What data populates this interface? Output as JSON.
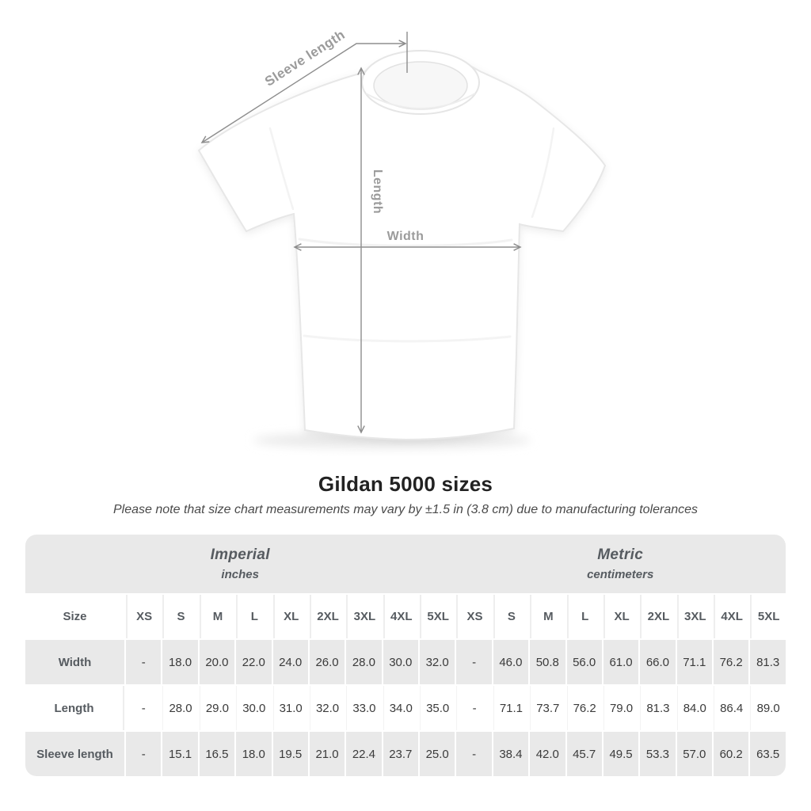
{
  "diagram": {
    "sleeve_label": "Sleeve length",
    "length_label": "Length",
    "width_label": "Width"
  },
  "title": "Gildan 5000 sizes",
  "subtitle": "Please note that size chart measurements may vary by ±1.5 in (3.8 cm) due to manufacturing tolerances",
  "table": {
    "size_header": "Size",
    "groups": [
      {
        "label": "Imperial",
        "sublabel": "inches"
      },
      {
        "label": "Metric",
        "sublabel": "centimeters"
      }
    ],
    "sizes": [
      "XS",
      "S",
      "M",
      "L",
      "XL",
      "2XL",
      "3XL",
      "4XL",
      "5XL"
    ],
    "rows": [
      {
        "label": "Width",
        "imperial": [
          "-",
          "18.0",
          "20.0",
          "22.0",
          "24.0",
          "26.0",
          "28.0",
          "30.0",
          "32.0"
        ],
        "metric": [
          "-",
          "46.0",
          "50.8",
          "56.0",
          "61.0",
          "66.0",
          "71.1",
          "76.2",
          "81.3"
        ]
      },
      {
        "label": "Length",
        "imperial": [
          "-",
          "28.0",
          "29.0",
          "30.0",
          "31.0",
          "32.0",
          "33.0",
          "34.0",
          "35.0"
        ],
        "metric": [
          "-",
          "71.1",
          "73.7",
          "76.2",
          "79.0",
          "81.3",
          "84.0",
          "86.4",
          "89.0"
        ]
      },
      {
        "label": "Sleeve length",
        "imperial": [
          "-",
          "15.1",
          "16.5",
          "18.0",
          "19.5",
          "21.0",
          "22.4",
          "23.7",
          "25.0"
        ],
        "metric": [
          "-",
          "38.4",
          "42.0",
          "45.7",
          "49.5",
          "53.3",
          "57.0",
          "60.2",
          "63.5"
        ]
      }
    ]
  },
  "colors": {
    "band": "#e9e9e9",
    "line": "#8d8d8d",
    "label": "#9b9b9b",
    "title": "#222222",
    "header-text": "#565b60",
    "value-text": "#3b3b3b"
  }
}
